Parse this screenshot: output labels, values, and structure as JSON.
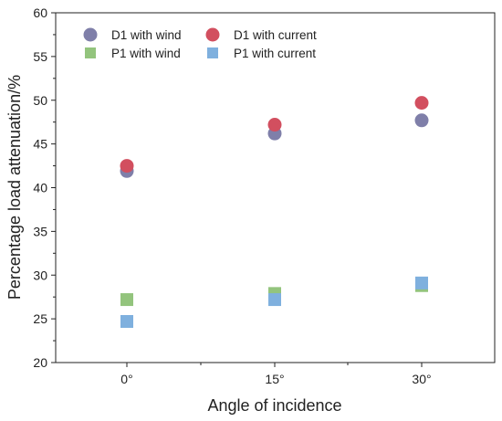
{
  "chart_data": {
    "type": "scatter",
    "xlabel": "Angle of incidence",
    "ylabel": "Percentage load attenuation/%",
    "categories": [
      "0°",
      "15°",
      "30°"
    ],
    "ylim": [
      20,
      60
    ],
    "yticks": [
      20,
      25,
      30,
      35,
      40,
      45,
      50,
      55,
      60
    ],
    "grid": false,
    "legend_position": "top-left",
    "series": [
      {
        "name": "D1 with wind",
        "marker": "circle",
        "color": "#7f7fa9",
        "values": [
          41.9,
          46.2,
          47.7
        ]
      },
      {
        "name": "D1 with current",
        "marker": "circle",
        "color": "#d24f5f",
        "values": [
          42.5,
          47.2,
          49.7
        ]
      },
      {
        "name": "P1 with wind",
        "marker": "square",
        "color": "#93c47d",
        "values": [
          27.2,
          27.9,
          28.8
        ]
      },
      {
        "name": "P1 with current",
        "marker": "square",
        "color": "#7fb0de",
        "values": [
          24.7,
          27.2,
          29.1
        ]
      }
    ]
  }
}
